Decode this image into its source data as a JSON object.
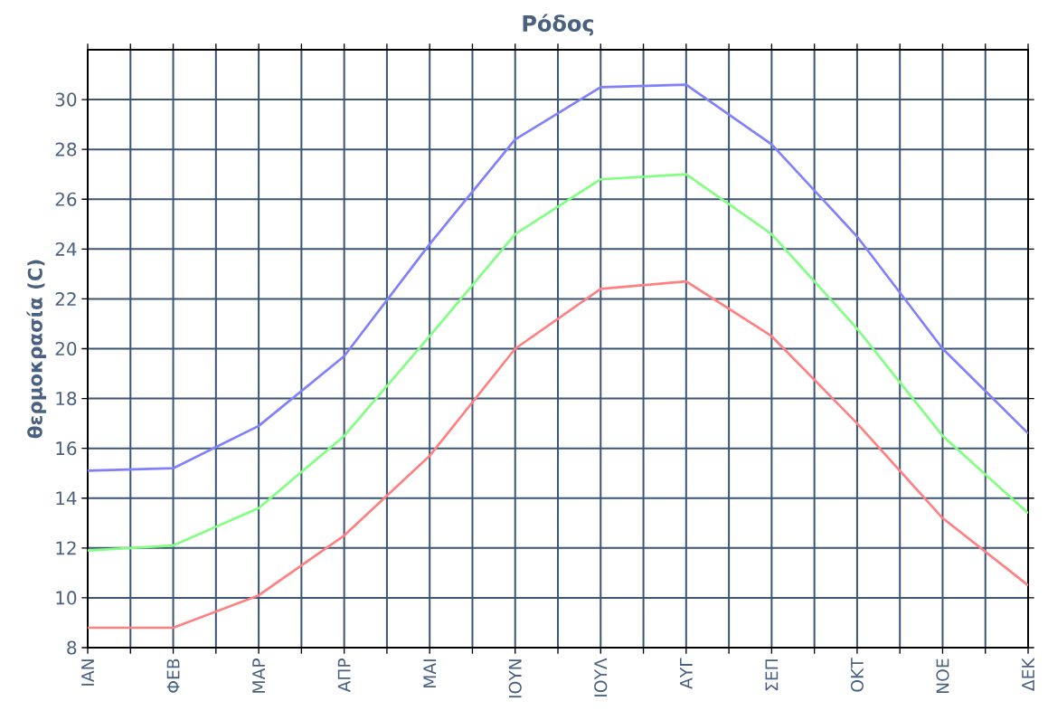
{
  "chart_data": {
    "type": "line",
    "title": "Ρόδος",
    "ylabel": "θερμοκρασία (C)",
    "categories": [
      "ΙΑΝ",
      "ΦΕΒ",
      "ΜΑΡ",
      "ΑΠΡ",
      "ΜΑΙ",
      "ΙΟΥΝ",
      "ΙΟΥΛ",
      "ΑΥΓ",
      "ΣΕΠ",
      "ΟΚΤ",
      "ΝΟΕ",
      "ΔΕΚ"
    ],
    "series": [
      {
        "color": "#8080ff",
        "values": [
          15.1,
          15.2,
          16.9,
          19.7,
          24.2,
          28.4,
          30.5,
          30.6,
          28.2,
          24.5,
          20.0,
          16.6
        ]
      },
      {
        "color": "#80ff80",
        "values": [
          11.9,
          12.1,
          13.6,
          16.5,
          20.5,
          24.6,
          26.8,
          27.0,
          24.6,
          20.8,
          16.5,
          13.4
        ]
      },
      {
        "color": "#ff8080",
        "values": [
          8.8,
          8.8,
          10.1,
          12.5,
          15.7,
          20.0,
          22.4,
          22.7,
          20.5,
          17.0,
          13.2,
          10.5
        ]
      }
    ],
    "ylim": [
      8,
      32
    ],
    "yticks": [
      8,
      10,
      12,
      14,
      16,
      18,
      20,
      22,
      24,
      26,
      28,
      30
    ],
    "grid": true,
    "marker": "none",
    "line_style": "solid"
  }
}
